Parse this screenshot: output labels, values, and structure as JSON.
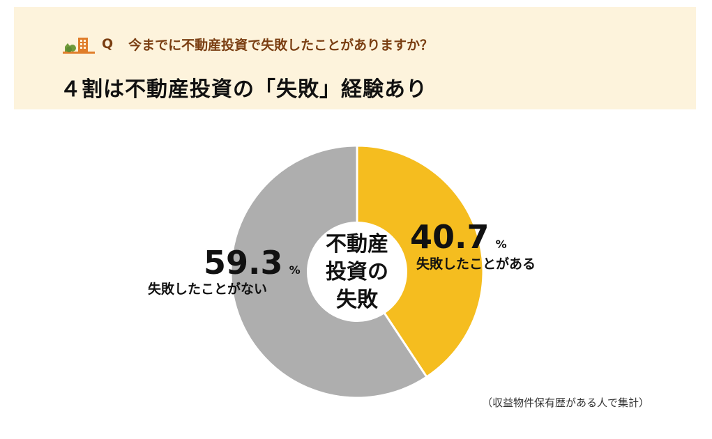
{
  "header": {
    "question_prefix": "Q",
    "question": "今までに不動産投資で失敗したことがありますか？",
    "headline": "４割は不動産投資の「失敗」経験あり",
    "icon": "house-building-icon"
  },
  "note": "（収益物件保有歴がある人で集計）",
  "colors": {
    "header_bg": "#fdf3dc",
    "question_text": "#7a3e12",
    "failed": "#f5bd1f",
    "not_failed": "#aeaeae"
  },
  "chart_data": {
    "type": "pie",
    "donut": true,
    "center_label": [
      "不動産",
      "投資の",
      "失敗"
    ],
    "series": [
      {
        "label": "失敗したことがある",
        "value": 40.7,
        "value_text": "40.7",
        "unit": "%",
        "color": "#f5bd1f"
      },
      {
        "label": "失敗したことがない",
        "value": 59.3,
        "value_text": "59.3",
        "unit": "%",
        "color": "#aeaeae"
      }
    ]
  }
}
